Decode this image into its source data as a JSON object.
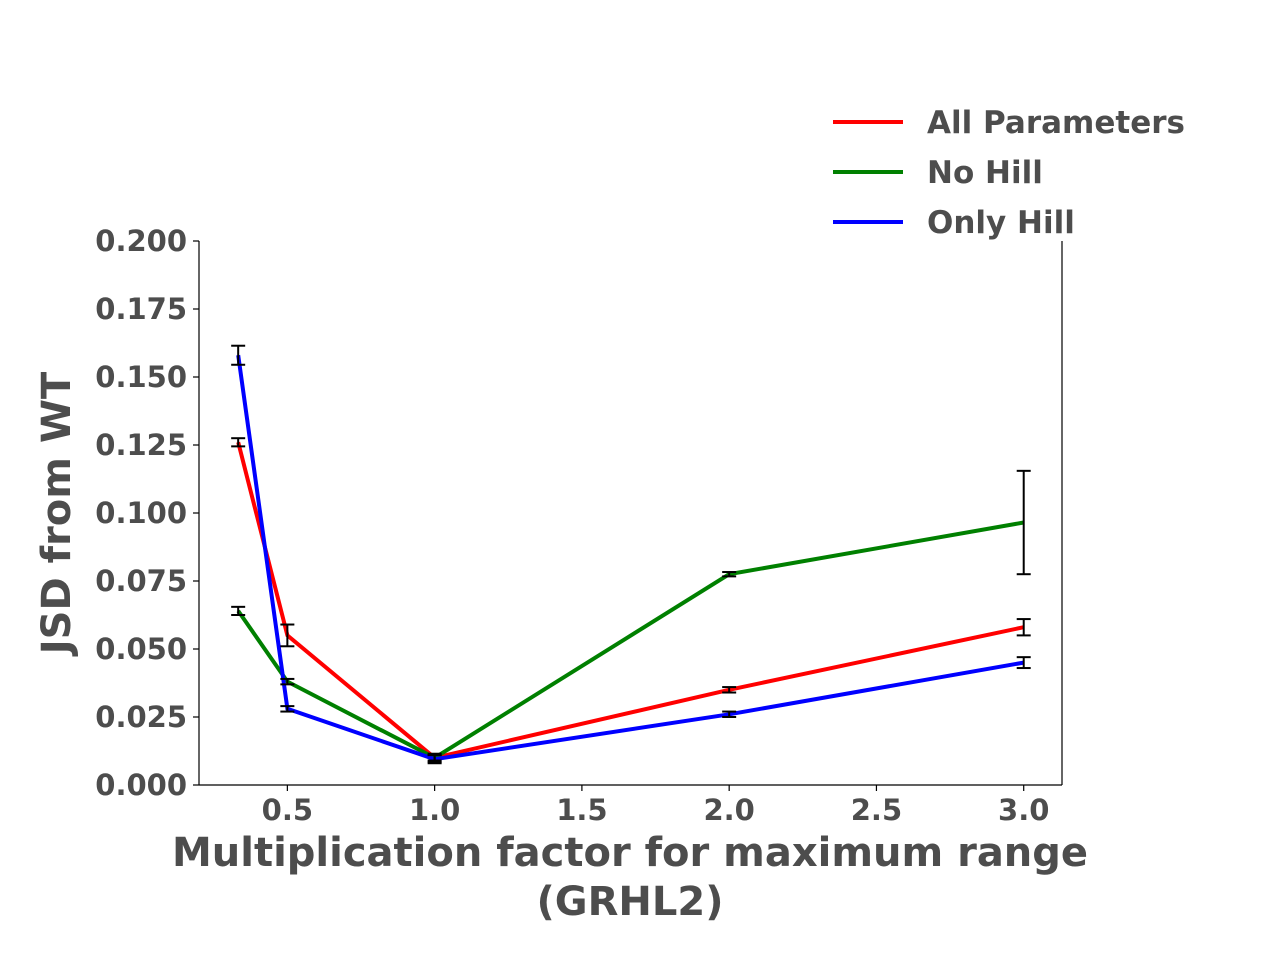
{
  "chart_data": {
    "type": "line",
    "xlabel_line1": "Multiplication factor for maximum range",
    "xlabel_line2": "(GRHL2)",
    "ylabel": "JSD from WT",
    "xlim": [
      0.2,
      3.13
    ],
    "ylim": [
      0.0,
      0.2
    ],
    "x_ticks": [
      "0.5",
      "1.0",
      "1.5",
      "2.0",
      "2.5",
      "3.0"
    ],
    "y_ticks": [
      "0.000",
      "0.025",
      "0.050",
      "0.075",
      "0.100",
      "0.125",
      "0.150",
      "0.175",
      "0.200"
    ],
    "x": [
      0.333,
      0.5,
      1.0,
      2.0,
      3.0
    ],
    "legend_position": "top-right",
    "grid": false,
    "series": [
      {
        "name": "All Parameters",
        "color": "#ff0000",
        "values": [
          0.126,
          0.055,
          0.01,
          0.035,
          0.058
        ],
        "errors": [
          0.0015,
          0.004,
          0.0015,
          0.001,
          0.003
        ]
      },
      {
        "name": "No Hill",
        "color": "#008000",
        "values": [
          0.064,
          0.038,
          0.01,
          0.0775,
          0.0965
        ],
        "errors": [
          0.0015,
          0.001,
          0.001,
          0.0008,
          0.019
        ]
      },
      {
        "name": "Only Hill",
        "color": "#0000ff",
        "values": [
          0.158,
          0.028,
          0.0095,
          0.026,
          0.045
        ],
        "errors": [
          0.0035,
          0.001,
          0.0015,
          0.001,
          0.002
        ]
      }
    ]
  }
}
